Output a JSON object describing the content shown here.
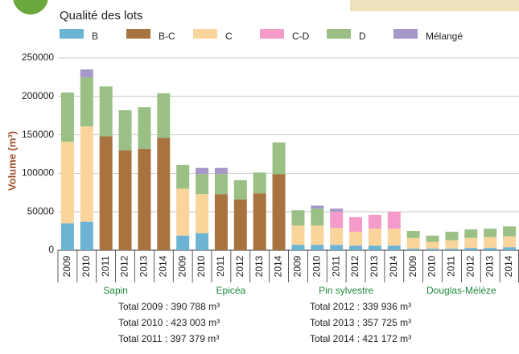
{
  "chart_data": {
    "type": "stacked-bar",
    "legend_title": "Qualité des lots",
    "ylabel": "Volume (m³)",
    "groups": [
      "Sapin",
      "Epicéa",
      "Pin sylvestre",
      "Douglas-Mélèze"
    ],
    "categories": [
      "2009",
      "2010",
      "2011",
      "2012",
      "2013",
      "2014",
      "2009",
      "2010",
      "2011",
      "2012",
      "2013",
      "2014",
      "2009",
      "2010",
      "2011",
      "2012",
      "2013",
      "2014",
      "2009",
      "2010",
      "2011",
      "2012",
      "2013",
      "2014"
    ],
    "ylim": [
      0,
      250000
    ],
    "yticks": [
      0,
      50000,
      100000,
      150000,
      200000,
      250000
    ],
    "grid": true,
    "series": [
      {
        "name": "B",
        "color": "#6db3d3",
        "values": [
          35000,
          37000,
          null,
          null,
          null,
          null,
          19000,
          22000,
          null,
          null,
          null,
          null,
          7000,
          7000,
          7000,
          6000,
          6000,
          6000,
          2000,
          2000,
          2000,
          3000,
          3000,
          4000
        ]
      },
      {
        "name": "B-C",
        "color": "#a8733f",
        "values": [
          null,
          null,
          148000,
          130000,
          132000,
          146000,
          null,
          null,
          73000,
          66000,
          74000,
          99000,
          null,
          null,
          null,
          null,
          null,
          null,
          null,
          null,
          null,
          null,
          null,
          null
        ]
      },
      {
        "name": "C",
        "color": "#f9d59b",
        "values": [
          106000,
          124000,
          null,
          null,
          null,
          null,
          61000,
          51000,
          null,
          null,
          null,
          null,
          25000,
          25000,
          22000,
          18000,
          22000,
          22000,
          14000,
          9000,
          11000,
          13000,
          14000,
          14000
        ]
      },
      {
        "name": "C-D",
        "color": "#f59bc9",
        "values": [
          null,
          null,
          null,
          null,
          null,
          null,
          null,
          null,
          null,
          null,
          null,
          null,
          null,
          null,
          21000,
          19000,
          18000,
          22000,
          null,
          null,
          null,
          null,
          null,
          null
        ]
      },
      {
        "name": "D",
        "color": "#9ac085",
        "values": [
          64000,
          64000,
          65000,
          52000,
          54000,
          58000,
          31000,
          26000,
          26000,
          25000,
          27000,
          41000,
          20000,
          22000,
          null,
          null,
          null,
          null,
          9000,
          8000,
          11000,
          11000,
          11000,
          13000
        ]
      },
      {
        "name": "Mélangé",
        "color": "#a597c9",
        "values": [
          null,
          10000,
          null,
          null,
          null,
          null,
          null,
          8000,
          8000,
          null,
          null,
          null,
          null,
          4000,
          4000,
          null,
          null,
          null,
          null,
          null,
          null,
          null,
          null,
          null
        ]
      }
    ],
    "annotations": [
      "Total 2009 : 390 788 m³",
      "Total 2010 : 423 003 m³",
      "Total 2011 : 397 379 m³",
      "Total 2012 : 339 936 m³",
      "Total 2013 : 357 725 m³",
      "Total 2014 : 421 172 m³"
    ]
  }
}
